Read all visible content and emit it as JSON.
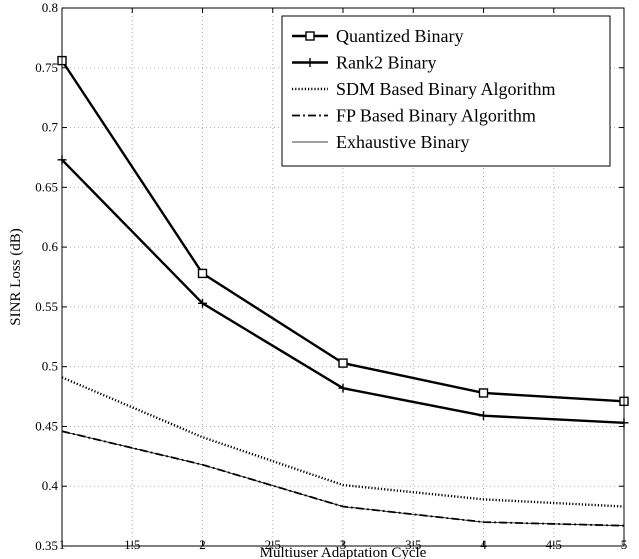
{
  "chart_data": {
    "type": "line",
    "title": "",
    "xlabel": "Multiuser Adaptation Cycle",
    "ylabel": "SINR Loss (dB)",
    "xlim": [
      1,
      5
    ],
    "ylim": [
      0.35,
      0.8
    ],
    "xticks": [
      1,
      1.5,
      2,
      2.5,
      3,
      3.5,
      4,
      4.5,
      5
    ],
    "xtick_labels": [
      "1",
      "1.5",
      "2",
      "2.5",
      "3",
      "3.5",
      "4",
      "4.5",
      "5"
    ],
    "yticks": [
      0.35,
      0.4,
      0.45,
      0.5,
      0.55,
      0.6,
      0.65,
      0.7,
      0.75,
      0.8
    ],
    "ytick_labels": [
      "0.35",
      "0.4",
      "0.45",
      "0.5",
      "0.55",
      "0.6",
      "0.65",
      "0.7",
      "0.75",
      "0.8"
    ],
    "grid": true,
    "legend_position": "top-right",
    "x": [
      1,
      2,
      3,
      4,
      5
    ],
    "series": [
      {
        "name": "Quantized Binary",
        "values": [
          0.756,
          0.578,
          0.503,
          0.478,
          0.471
        ],
        "style": "solid-thick",
        "marker": "square",
        "color": "#000000"
      },
      {
        "name": "Rank2 Binary",
        "values": [
          0.673,
          0.553,
          0.482,
          0.459,
          0.453
        ],
        "style": "solid-thick",
        "marker": "plus",
        "color": "#000000"
      },
      {
        "name": "SDM Based Binary Algorithm",
        "values": [
          0.491,
          0.441,
          0.401,
          0.389,
          0.383
        ],
        "style": "dotted",
        "marker": "none",
        "color": "#000000"
      },
      {
        "name": "FP Based Binary Algorithm",
        "values": [
          0.446,
          0.418,
          0.383,
          0.37,
          0.367
        ],
        "style": "dashdot",
        "marker": "none",
        "color": "#000000"
      },
      {
        "name": "Exhaustive Binary",
        "values": [
          0.446,
          0.418,
          0.383,
          0.37,
          0.367
        ],
        "style": "solid-thin",
        "marker": "none",
        "color": "#000000"
      }
    ]
  }
}
